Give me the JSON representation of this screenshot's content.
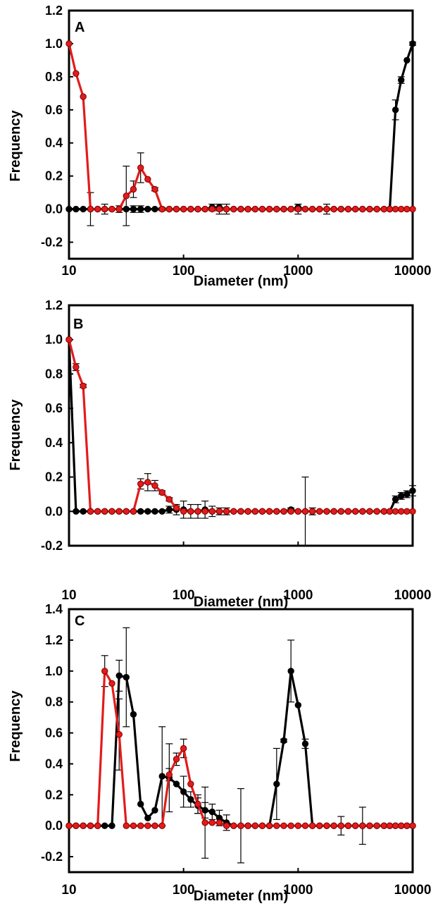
{
  "colors": {
    "series_black": "#000000",
    "series_red": "#e31b1b",
    "red_marker_stroke": "#7a0000",
    "frame": "#000000"
  },
  "chart_data": [
    {
      "type": "line",
      "panel_label": "A",
      "xlabel": "Diameter (nm)",
      "ylabel": "Frequency",
      "xscale": "log",
      "xlim": [
        10,
        10000
      ],
      "xticks": [
        "10",
        "100",
        "1000",
        "10000"
      ],
      "ylim": [
        -0.3,
        1.2
      ],
      "yticks": [
        "-0.2",
        "0.0",
        "0.2",
        "0.4",
        "0.6",
        "0.8",
        "1.0",
        "1.2"
      ],
      "grid": false,
      "legend": "none",
      "series": [
        {
          "color": "black",
          "x": [
            10,
            11.5,
            13.3,
            15.4,
            17.8,
            20.5,
            23.7,
            27.4,
            31.6,
            36.5,
            42.2,
            48.7,
            56.2,
            65,
            75,
            86.6,
            100,
            115.5,
            133.4,
            154,
            177.8,
            205.4,
            237.1,
            273.8,
            316.2,
            365.2,
            421.7,
            487,
            562.3,
            649.4,
            749.9,
            866,
            1000,
            1154.8,
            1333.5,
            1539.9,
            1778.3,
            2053.5,
            2371.4,
            2738.4,
            3162.3,
            3651.7,
            4217,
            4869.7,
            5623.4,
            6309.6,
            7079.5,
            7943.3,
            8912.5,
            10000
          ],
          "y": [
            0,
            0,
            0,
            0,
            0,
            0,
            0,
            0,
            0,
            0,
            0,
            0,
            0,
            0,
            0,
            0,
            0,
            0,
            0,
            0,
            0.01,
            0.01,
            0,
            0,
            0,
            0,
            0,
            0,
            0,
            0,
            0,
            0,
            0.01,
            0,
            0,
            0,
            0,
            0,
            0,
            0,
            0,
            0,
            0,
            0,
            0,
            0,
            0.6,
            0.78,
            0.9,
            1.0
          ],
          "err": [
            0,
            0,
            0,
            0,
            0,
            0,
            0,
            0.02,
            0,
            0.02,
            0.02,
            0,
            0,
            0,
            0,
            0,
            0,
            0,
            0,
            0,
            0.02,
            0.02,
            0,
            0,
            0,
            0,
            0,
            0,
            0,
            0,
            0,
            0,
            0.02,
            0,
            0,
            0,
            0,
            0,
            0,
            0,
            0,
            0,
            0,
            0,
            0,
            0,
            0.06,
            0.02,
            0,
            0.01
          ]
        },
        {
          "color": "red",
          "x": [
            10,
            11.5,
            13.3,
            15.4,
            17.8,
            20.5,
            23.7,
            27.4,
            31.6,
            36.5,
            42.2,
            48.7,
            56.2,
            65,
            75,
            86.6,
            100,
            115.5,
            133.4,
            154,
            177.8,
            205.4,
            237.1,
            273.8,
            316.2,
            365.2,
            421.7,
            487,
            562.3,
            649.4,
            749.9,
            866,
            1000,
            1154.8,
            1333.5,
            1539.9,
            1778.3,
            2053.5,
            2371.4,
            2738.4,
            3162.3,
            3651.7,
            4217,
            4869.7,
            5623.4,
            6309.6,
            7079.5,
            7943.3,
            8912.5,
            10000
          ],
          "y": [
            1.0,
            0.82,
            0.68,
            0,
            0,
            0,
            0,
            0,
            0.08,
            0.12,
            0.25,
            0.18,
            0.12,
            0,
            0,
            0,
            0,
            0,
            0,
            0,
            0,
            0,
            0,
            0,
            0,
            0,
            0,
            0,
            0,
            0,
            0,
            0,
            0,
            0,
            0,
            0,
            0,
            0,
            0,
            0,
            0,
            0,
            0,
            0,
            0,
            0,
            0,
            0,
            0,
            0
          ],
          "err": [
            0,
            0,
            0,
            0.1,
            0,
            0.03,
            0,
            0,
            0.18,
            0.05,
            0.09,
            0,
            0.01,
            0.01,
            0,
            0,
            0,
            0,
            0,
            0,
            0,
            0.03,
            0.03,
            0,
            0,
            0,
            0,
            0,
            0,
            0,
            0,
            0,
            0.03,
            0,
            0,
            0,
            0.03,
            0,
            0,
            0,
            0,
            0,
            0,
            0,
            0,
            0,
            0,
            0,
            0,
            0
          ]
        }
      ]
    },
    {
      "type": "line",
      "panel_label": "B",
      "xlabel": "Diameter (nm)",
      "ylabel": "Frequency",
      "xscale": "log",
      "xlim": [
        10,
        10000
      ],
      "xticks": [
        "10",
        "100",
        "1000",
        "10000"
      ],
      "ylim": [
        -0.2,
        1.2
      ],
      "yticks": [
        "-0.2",
        "0.0",
        "0.2",
        "0.4",
        "0.6",
        "0.8",
        "1.0",
        "1.2"
      ],
      "grid": false,
      "legend": "none",
      "series": [
        {
          "color": "black",
          "x": [
            10,
            11.5,
            13.3,
            15.4,
            17.8,
            20.5,
            23.7,
            27.4,
            31.6,
            36.5,
            42.2,
            48.7,
            56.2,
            65,
            75,
            86.6,
            100,
            115.5,
            133.4,
            154,
            177.8,
            205.4,
            237.1,
            273.8,
            316.2,
            365.2,
            421.7,
            487,
            562.3,
            649.4,
            749.9,
            866,
            1000,
            1154.8,
            1333.5,
            1539.9,
            1778.3,
            2053.5,
            2371.4,
            2738.4,
            3162.3,
            3651.7,
            4217,
            4869.7,
            5623.4,
            6309.6,
            7079.5,
            7943.3,
            8912.5,
            10000
          ],
          "y": [
            1.0,
            0,
            0,
            0,
            0,
            0,
            0,
            0,
            0,
            0,
            0,
            0,
            0,
            0,
            0.01,
            0.01,
            0.01,
            0,
            0,
            0.01,
            0,
            0,
            0,
            0,
            0,
            0,
            0,
            0,
            0,
            0,
            0,
            0.01,
            0,
            0,
            0,
            0,
            0,
            0,
            0,
            0,
            0,
            0,
            0,
            0,
            0,
            0,
            0.07,
            0.09,
            0.1,
            0.12
          ],
          "err": [
            0,
            0,
            0,
            0,
            0,
            0,
            0,
            0,
            0,
            0,
            0,
            0,
            0,
            0,
            0.02,
            0.03,
            0.05,
            0.04,
            0.04,
            0.05,
            0.03,
            0.02,
            0.02,
            0,
            0,
            0,
            0,
            0,
            0,
            0,
            0,
            0.01,
            0,
            0.2,
            0.02,
            0,
            0,
            0,
            0,
            0,
            0,
            0,
            0,
            0,
            0,
            0,
            0.02,
            0.02,
            0.02,
            0.03
          ]
        },
        {
          "color": "red",
          "x": [
            10,
            11.5,
            13.3,
            15.4,
            17.8,
            20.5,
            23.7,
            27.4,
            31.6,
            36.5,
            42.2,
            48.7,
            56.2,
            65,
            75,
            86.6,
            100,
            115.5,
            133.4,
            154,
            177.8,
            205.4,
            237.1,
            273.8,
            316.2,
            365.2,
            421.7,
            487,
            562.3,
            649.4,
            749.9,
            866,
            1000,
            1154.8,
            1333.5,
            1539.9,
            1778.3,
            2053.5,
            2371.4,
            2738.4,
            3162.3,
            3651.7,
            4217,
            4869.7,
            5623.4,
            6309.6,
            7079.5,
            7943.3,
            8912.5,
            10000
          ],
          "y": [
            1.0,
            0.84,
            0.73,
            0,
            0,
            0,
            0,
            0,
            0,
            0,
            0.16,
            0.17,
            0.15,
            0.11,
            0.07,
            0.02,
            0,
            0,
            0,
            0,
            0,
            0,
            0,
            0,
            0,
            0,
            0,
            0,
            0,
            0,
            0,
            0,
            0,
            0,
            0,
            0,
            0,
            0,
            0,
            0,
            0,
            0,
            0,
            0,
            0,
            0,
            0,
            0,
            0,
            0
          ],
          "err": [
            0,
            0.02,
            0.01,
            0,
            0,
            0,
            0,
            0,
            0,
            0,
            0.03,
            0.05,
            0.03,
            0.01,
            0.01,
            0.01,
            0,
            0,
            0,
            0,
            0,
            0,
            0,
            0,
            0,
            0,
            0,
            0,
            0,
            0,
            0,
            0,
            0,
            0,
            0,
            0,
            0,
            0,
            0,
            0,
            0,
            0,
            0,
            0,
            0,
            0,
            0,
            0,
            0,
            0
          ]
        }
      ]
    },
    {
      "type": "line",
      "panel_label": "C",
      "xlabel": "Diameter (nm)",
      "ylabel": "Frequency",
      "xscale": "log",
      "xlim": [
        10,
        10000
      ],
      "xticks": [
        "10",
        "100",
        "1000",
        "10000"
      ],
      "ylim": [
        -0.3,
        1.4
      ],
      "yticks": [
        "-0.2",
        "0.0",
        "0.2",
        "0.4",
        "0.6",
        "0.8",
        "1.0",
        "1.2",
        "1.4"
      ],
      "grid": false,
      "legend": "none",
      "series": [
        {
          "color": "black",
          "x": [
            10,
            11.5,
            13.3,
            15.4,
            17.8,
            20.5,
            23.7,
            27.4,
            31.6,
            36.5,
            42.2,
            48.7,
            56.2,
            65,
            75,
            86.6,
            100,
            115.5,
            133.4,
            154,
            177.8,
            205.4,
            237.1,
            273.8,
            316.2,
            365.2,
            421.7,
            487,
            562.3,
            649.4,
            749.9,
            866,
            1000,
            1154.8,
            1333.5,
            1539.9,
            1778.3,
            2053.5,
            2371.4,
            2738.4,
            3162.3,
            3651.7,
            4217,
            4869.7,
            5623.4,
            6309.6,
            7079.5,
            7943.3,
            8912.5,
            10000
          ],
          "y": [
            0,
            0,
            0,
            0,
            0,
            0,
            0,
            0.97,
            0.96,
            0.72,
            0.14,
            0.05,
            0.1,
            0.32,
            0.31,
            0.27,
            0.22,
            0.17,
            0.13,
            0.1,
            0.09,
            0.05,
            0.02,
            0,
            0,
            0,
            0,
            0,
            0,
            0.27,
            0.55,
            1.0,
            0.78,
            0.53,
            0,
            0,
            0,
            0,
            0,
            0,
            0,
            0,
            0,
            0,
            0,
            0,
            0,
            0,
            0,
            0
          ],
          "err": [
            0,
            0,
            0,
            0,
            0,
            0,
            0,
            0.1,
            0.32,
            0,
            0,
            0,
            0,
            0.32,
            0.22,
            0,
            0.1,
            0.05,
            0.05,
            0.05,
            0.05,
            0.05,
            0.05,
            0,
            0.24,
            0,
            0,
            0,
            0,
            0.23,
            0.01,
            0.2,
            0,
            0.03,
            0,
            0,
            0,
            0,
            0,
            0,
            0,
            0,
            0,
            0,
            0,
            0,
            0,
            0,
            0,
            0
          ]
        },
        {
          "color": "red",
          "x": [
            10,
            11.5,
            13.3,
            15.4,
            17.8,
            20.5,
            23.7,
            27.4,
            31.6,
            36.5,
            42.2,
            48.7,
            56.2,
            65,
            75,
            86.6,
            100,
            115.5,
            133.4,
            154,
            177.8,
            205.4,
            237.1,
            273.8,
            316.2,
            365.2,
            421.7,
            487,
            562.3,
            649.4,
            749.9,
            866,
            1000,
            1154.8,
            1333.5,
            1539.9,
            1778.3,
            2053.5,
            2371.4,
            2738.4,
            3162.3,
            3651.7,
            4217,
            4869.7,
            5623.4,
            6309.6,
            7079.5,
            7943.3,
            8912.5,
            10000
          ],
          "y": [
            0,
            0,
            0,
            0,
            0,
            1.0,
            0.92,
            0.59,
            0,
            0,
            0,
            0,
            0,
            0,
            0.33,
            0.43,
            0.5,
            0.27,
            0.14,
            0.02,
            0.02,
            0.02,
            0,
            0,
            0,
            0,
            0,
            0,
            0,
            0,
            0,
            0,
            0,
            0,
            0,
            0,
            0,
            0,
            0,
            0,
            0,
            0,
            0,
            0,
            0,
            0,
            0,
            0,
            0,
            0
          ],
          "err": [
            0,
            0,
            0,
            0,
            0,
            0.1,
            0,
            0.23,
            0,
            0,
            0,
            0,
            0,
            0,
            0.04,
            0.04,
            0.06,
            0,
            0.06,
            0.23,
            0,
            0,
            0,
            0,
            0,
            0,
            0,
            0,
            0,
            0,
            0,
            0,
            0,
            0,
            0,
            0,
            0,
            0,
            0.06,
            0,
            0,
            0.12,
            0,
            0,
            0,
            0,
            0,
            0,
            0,
            0
          ]
        }
      ]
    }
  ]
}
